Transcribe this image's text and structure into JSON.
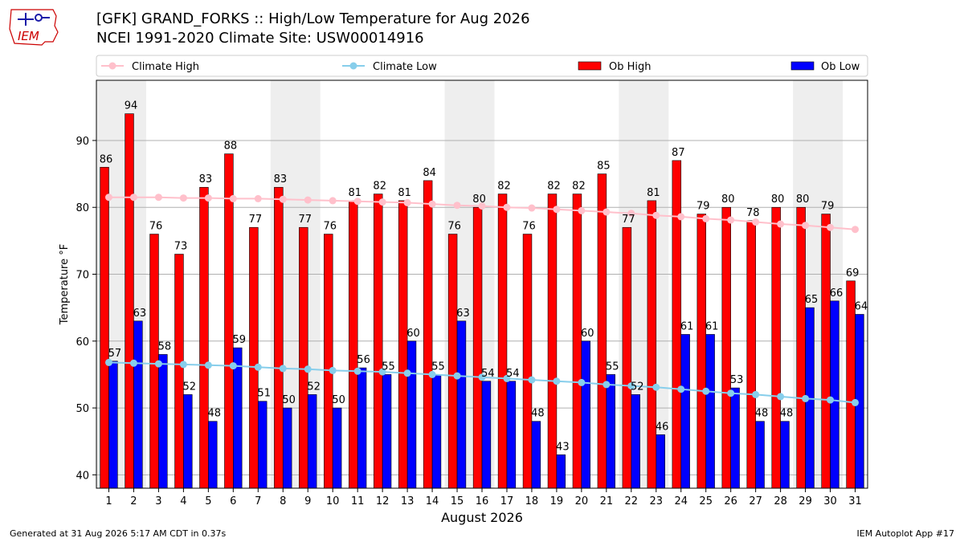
{
  "header": {
    "title_line1": "[GFK] GRAND_FORKS :: High/Low Temperature for Aug 2026",
    "title_line2": "NCEI 1991-2020 Climate Site: USW00014916",
    "logo_text": "IEM"
  },
  "footer": {
    "generated": "Generated at 31 Aug 2026 5:17 AM CDT in 0.37s",
    "app": "IEM Autoplot App #17"
  },
  "colors": {
    "ob_high": "#ff0000",
    "ob_low": "#0000ff",
    "climate_high": "#ffc0cb",
    "climate_low": "#87ceeb",
    "weekend_shade": "#eeeeee",
    "grid": "#b0b0b0"
  },
  "chart_data": {
    "type": "bar",
    "xlabel": "August 2026",
    "ylabel": "Temperature °F",
    "xlim": [
      0.5,
      31.5
    ],
    "ylim": [
      38,
      99
    ],
    "yticks": [
      40,
      50,
      60,
      70,
      80,
      90
    ],
    "grid": "horizontal",
    "legend_position": "top",
    "legend": [
      "Climate High",
      "Climate Low",
      "Ob High",
      "Ob Low"
    ],
    "categories": [
      "1",
      "2",
      "3",
      "4",
      "5",
      "6",
      "7",
      "8",
      "9",
      "10",
      "11",
      "12",
      "13",
      "14",
      "15",
      "16",
      "17",
      "18",
      "19",
      "20",
      "21",
      "22",
      "23",
      "24",
      "25",
      "26",
      "27",
      "28",
      "29",
      "30",
      "31"
    ],
    "shaded_days": [
      [
        1,
        2
      ],
      [
        8,
        9
      ],
      [
        15,
        16
      ],
      [
        22,
        23
      ],
      [
        29,
        30
      ]
    ],
    "series": [
      {
        "name": "Ob High",
        "kind": "bar",
        "values": [
          86,
          94,
          76,
          73,
          83,
          88,
          77,
          83,
          77,
          76,
          81,
          82,
          81,
          84,
          76,
          80,
          82,
          76,
          82,
          82,
          85,
          77,
          81,
          87,
          79,
          80,
          78,
          80,
          80,
          79,
          69
        ]
      },
      {
        "name": "Ob Low",
        "kind": "bar",
        "values": [
          57,
          63,
          58,
          52,
          48,
          59,
          51,
          50,
          52,
          50,
          56,
          55,
          60,
          55,
          63,
          54,
          54,
          48,
          43,
          60,
          55,
          52,
          46,
          61,
          61,
          53,
          48,
          48,
          65,
          66,
          64
        ]
      },
      {
        "name": "Climate High",
        "kind": "line",
        "values": [
          81.5,
          81.5,
          81.5,
          81.4,
          81.4,
          81.3,
          81.3,
          81.2,
          81.1,
          81.0,
          80.9,
          80.8,
          80.7,
          80.5,
          80.3,
          80.2,
          80.0,
          79.9,
          79.7,
          79.5,
          79.3,
          79.1,
          78.8,
          78.6,
          78.3,
          78.1,
          77.8,
          77.5,
          77.3,
          77.0,
          76.7
        ]
      },
      {
        "name": "Climate Low",
        "kind": "line",
        "values": [
          56.8,
          56.7,
          56.6,
          56.5,
          56.4,
          56.3,
          56.1,
          55.9,
          55.8,
          55.6,
          55.5,
          55.4,
          55.2,
          55.0,
          54.8,
          54.6,
          54.4,
          54.2,
          54.0,
          53.8,
          53.5,
          53.3,
          53.1,
          52.8,
          52.5,
          52.2,
          52.0,
          51.7,
          51.4,
          51.2,
          50.8
        ]
      }
    ]
  }
}
